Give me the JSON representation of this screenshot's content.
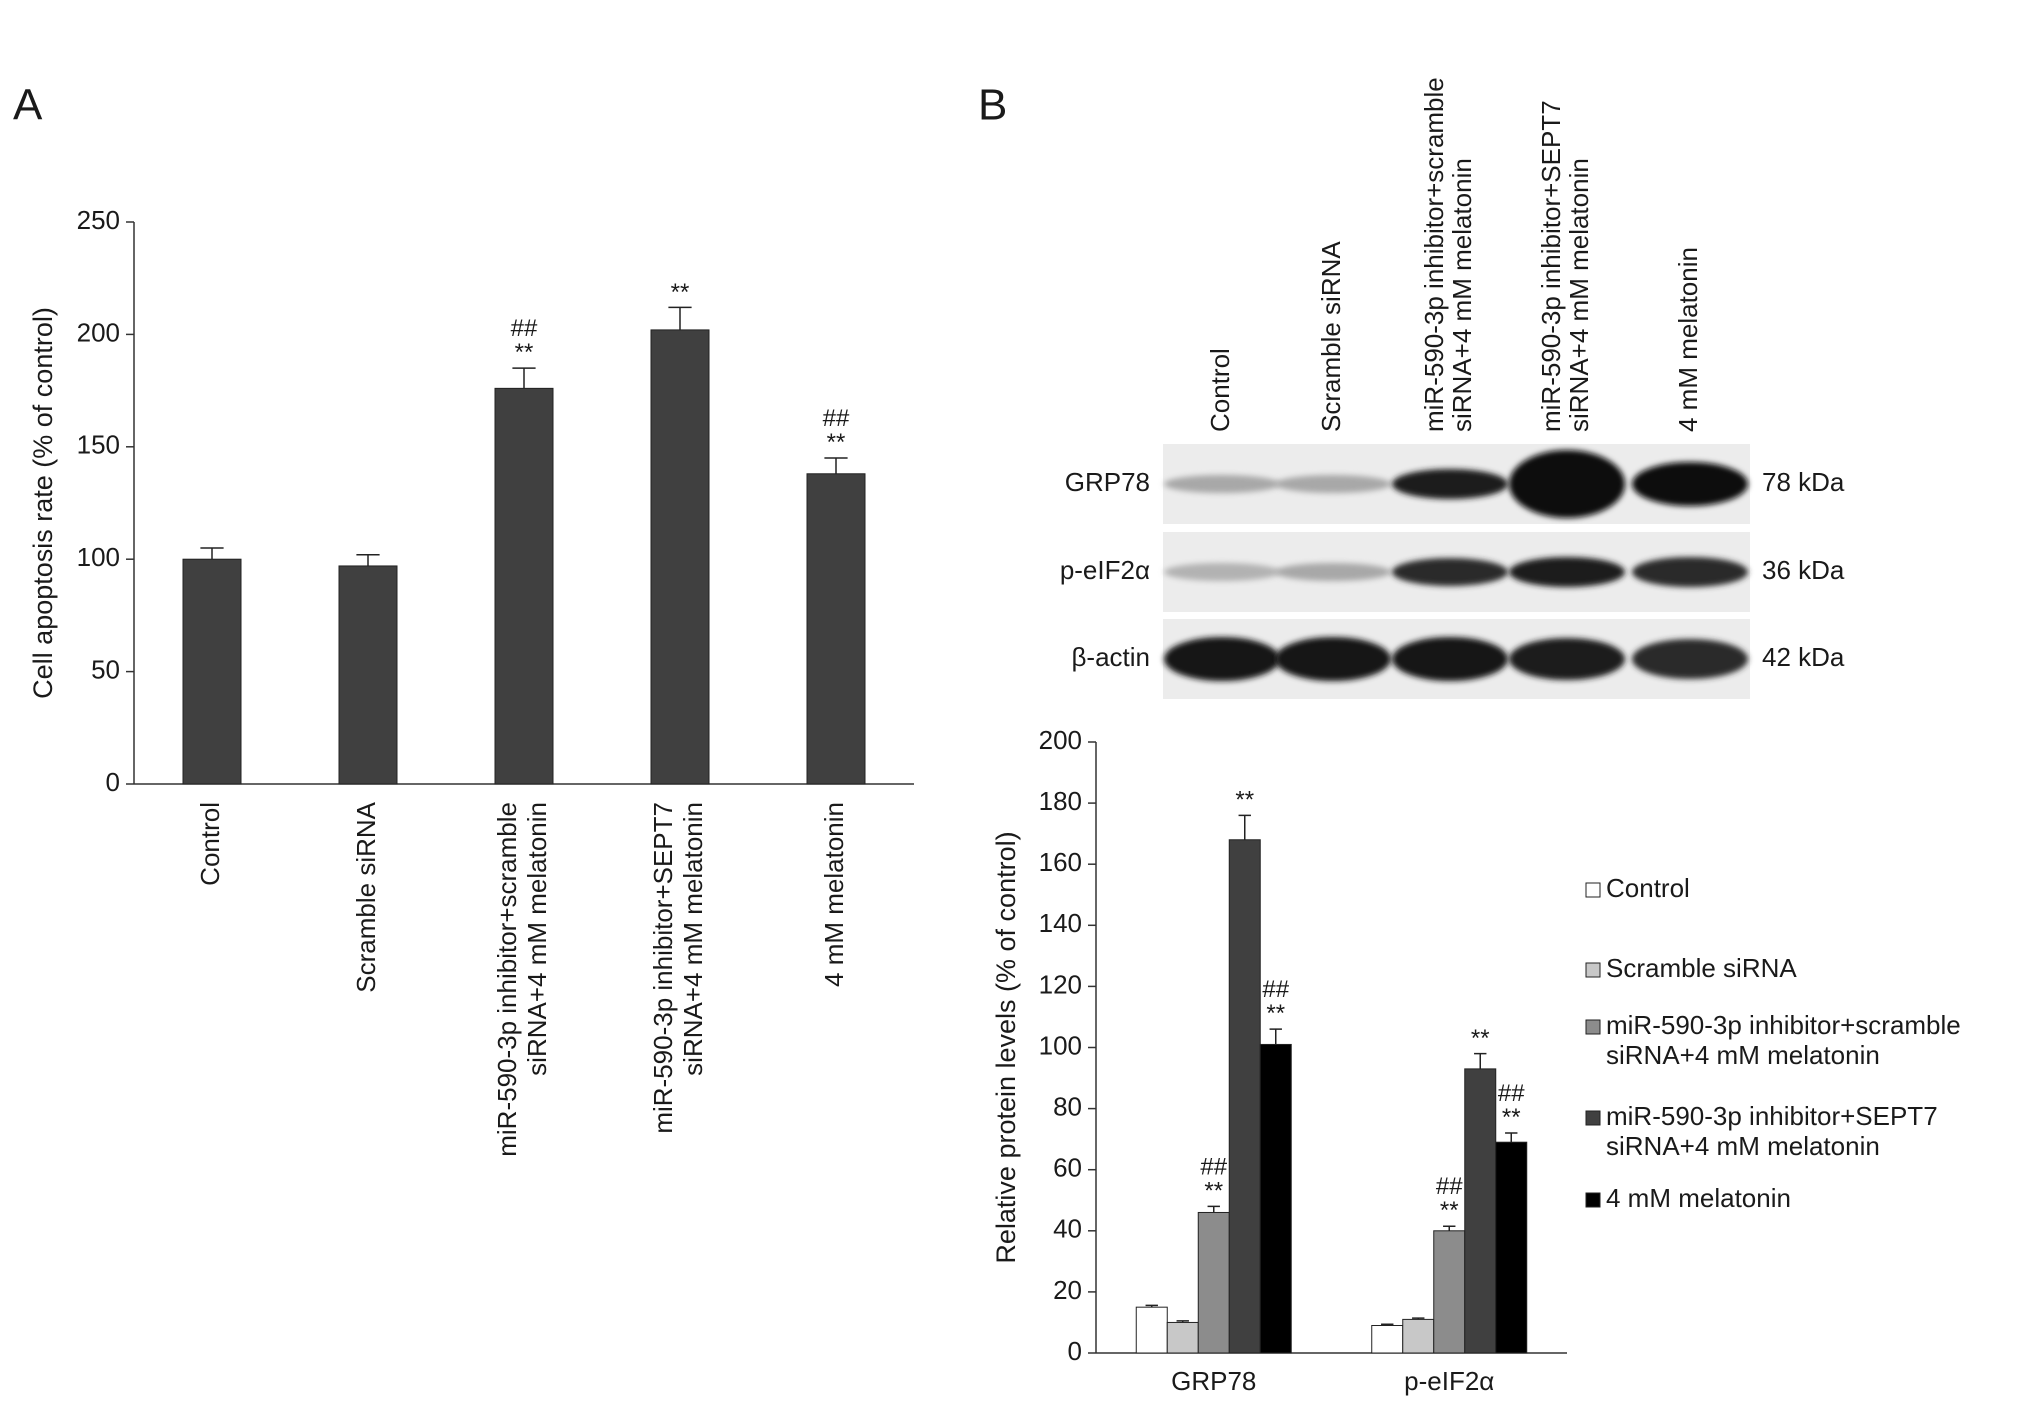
{
  "panel_labels": [
    "A",
    "B"
  ],
  "blot": {
    "lanes": [
      "Control",
      "Scramble siRNA",
      "miR-590-3p inhibitor+scramble\nsiRNA+4 mM melatonin",
      "miR-590-3p inhibitor+SEPT7\nsiRNA+4 mM melatonin",
      "4 mM melatonin"
    ],
    "rows": [
      {
        "label": "GRP78",
        "size": "78 kDa"
      },
      {
        "label": "p-eIF2α",
        "size": "36 kDa"
      },
      {
        "label": "β-actin",
        "size": "42 kDa"
      }
    ]
  },
  "chart_data": [
    {
      "type": "bar",
      "ylabel": "Cell apoptosis rate (% of control)",
      "categories": [
        "Control",
        "Scramble siRNA",
        "miR-590-3p inhibitor+scramble\nsiRNA+4 mM melatonin",
        "miR-590-3p inhibitor+SEPT7\nsiRNA+4 mM melatonin",
        "4 mM melatonin"
      ],
      "values": [
        100,
        97,
        176,
        202,
        138
      ],
      "errors": [
        5,
        5,
        9,
        10,
        7
      ],
      "annotations": [
        null,
        null,
        "##\n**",
        "**",
        "##\n**"
      ],
      "color": "#404040",
      "ylim": [
        0,
        250
      ],
      "yticks": [
        0,
        50,
        100,
        150,
        200,
        250
      ]
    },
    {
      "type": "grouped-bar",
      "ylabel": "Relative protein levels (% of control)",
      "categories": [
        "GRP78",
        "p-eIF2α"
      ],
      "series": [
        {
          "name": "Control",
          "color": "#ffffff",
          "values": [
            15,
            9
          ],
          "errors": [
            0.6,
            0.4
          ],
          "annotations": [
            null,
            null
          ]
        },
        {
          "name": "Scramble siRNA",
          "color": "#c8c8c8",
          "values": [
            10,
            11
          ],
          "errors": [
            0.5,
            0.4
          ],
          "annotations": [
            null,
            null
          ]
        },
        {
          "name": "miR-590-3p inhibitor+scramble\nsiRNA+4 mM melatonin",
          "color": "#8c8c8c",
          "values": [
            46,
            40
          ],
          "errors": [
            2,
            1.5
          ],
          "annotations": [
            "##\n**",
            "##\n**"
          ]
        },
        {
          "name": "miR-590-3p inhibitor+SEPT7\nsiRNA+4 mM melatonin",
          "color": "#404040",
          "values": [
            168,
            93
          ],
          "errors": [
            8,
            5
          ],
          "annotations": [
            "**",
            "**"
          ]
        },
        {
          "name": "4 mM melatonin",
          "color": "#000000",
          "values": [
            101,
            69
          ],
          "errors": [
            5,
            3
          ],
          "annotations": [
            "##\n**",
            "##\n**"
          ]
        }
      ],
      "ylim": [
        0,
        200
      ],
      "yticks": [
        0,
        20,
        40,
        60,
        80,
        100,
        120,
        140,
        160,
        180,
        200
      ],
      "legend": "right"
    }
  ]
}
